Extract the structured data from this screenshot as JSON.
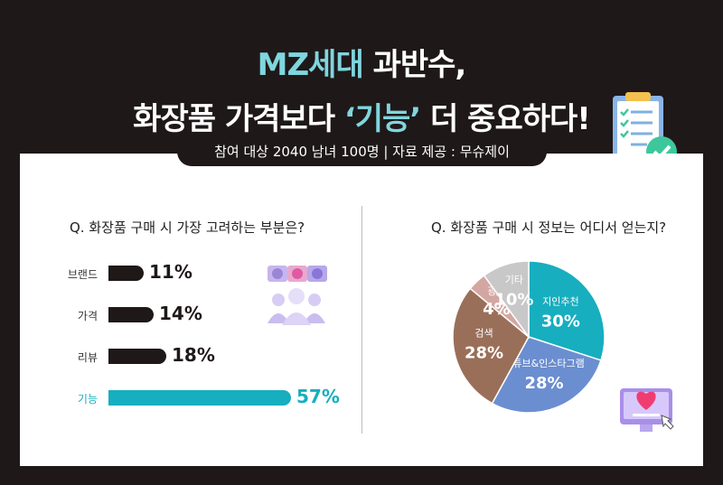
{
  "title": {
    "line1_accent": "MZ세대",
    "line1_rest": " 과반수,",
    "line2_pre": "화장품 가격보다 ",
    "line2_accent": "‘기능’",
    "line2_post": " 더 중요하다!"
  },
  "subtitle": "참여 대상 2040 남녀 100명 | 자료 제공 : 무슈제이",
  "colors": {
    "dark": "#1f1818",
    "teal": "#17aebf",
    "blue": "#6b8ed0",
    "brown": "#9a6f59",
    "pink": "#d4a6a1",
    "gray": "#c8c8c8"
  },
  "chart_data": [
    {
      "type": "bar",
      "title": "Q. 화장품 구매 시 가장 고려하는 부분은?",
      "categories": [
        "브랜드",
        "가격",
        "리뷰",
        "기능"
      ],
      "values": [
        11,
        14,
        18,
        57
      ],
      "value_labels": [
        "11%",
        "14%",
        "18%",
        "57%"
      ],
      "highlight": "기능",
      "xlim": [
        0,
        57
      ]
    },
    {
      "type": "pie",
      "title": "Q. 화장품 구매 시 정보는 어디서 얻는지?",
      "labels": [
        "지인추천",
        "유튜브&인스타그램",
        "검색",
        "광고",
        "기타"
      ],
      "values": [
        30,
        28,
        28,
        4,
        10
      ],
      "value_labels": [
        "30%",
        "28%",
        "28%",
        "4%",
        "10%"
      ],
      "colors": [
        "#17aebf",
        "#6b8ed0",
        "#9a6f59",
        "#d4a6a1",
        "#c8c8c8"
      ]
    }
  ],
  "icons": [
    "clipboard-check-icon",
    "emoji-feedback-icon",
    "heart-monitor-icon"
  ]
}
